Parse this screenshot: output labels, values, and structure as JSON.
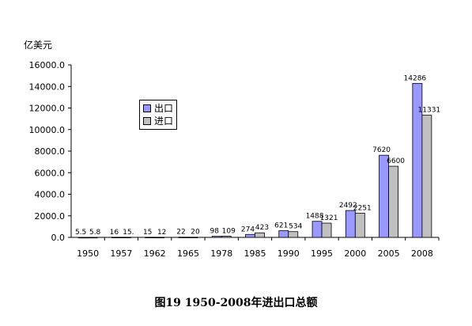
{
  "chart_data": {
    "type": "bar",
    "ylabel": "亿美元",
    "caption": "图19 1950-2008年进出口总额",
    "ylim": [
      0,
      16000
    ],
    "yticks": [
      "0.0",
      "2000.0",
      "4000.0",
      "6000.0",
      "8000.0",
      "10000.0",
      "12000.0",
      "14000.0",
      "16000.0"
    ],
    "categories": [
      "1950",
      "1957",
      "1962",
      "1965",
      "1978",
      "1985",
      "1990",
      "1995",
      "2000",
      "2005",
      "2008"
    ],
    "legend_position": "left-middle",
    "series": [
      {
        "name": "出口",
        "color": "#9999ff",
        "values": [
          5.5,
          16,
          15,
          22,
          98,
          274,
          621,
          1488,
          2492,
          7620,
          14286
        ],
        "labels": [
          "5.5",
          "16",
          "15",
          "22",
          "98",
          "274",
          "621",
          "1488",
          "2492",
          "7620",
          "14286"
        ]
      },
      {
        "name": "进口",
        "color": "#c0c0c0",
        "values": [
          5.8,
          15,
          12,
          20,
          109,
          423,
          534,
          1321,
          2251,
          6600,
          11331
        ],
        "labels": [
          "5.8",
          "15.",
          "12",
          "20",
          "109",
          "423",
          "534",
          "1321",
          "2251",
          "6600",
          "11331"
        ]
      }
    ]
  }
}
